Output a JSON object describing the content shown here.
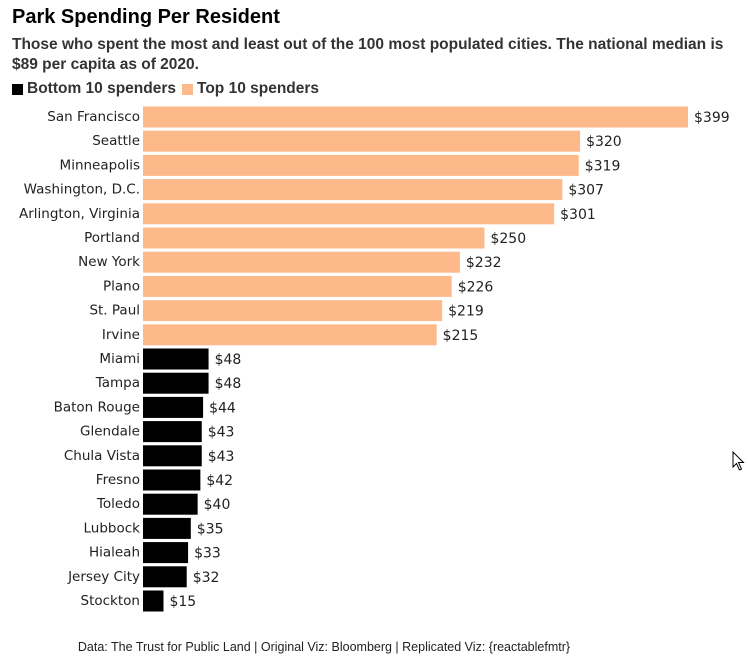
{
  "colors": {
    "top_spenders": "#FDB98A",
    "bottom_spenders": "#000000",
    "text": "#222222"
  },
  "header": {
    "title": "Park Spending Per Resident",
    "subtitle": "Those who spent the most and least out of the 100 most populated cities. The national median is $89 per capita as of 2020."
  },
  "legend": {
    "bottom_label": "Bottom 10 spenders",
    "top_label": "Top 10 spenders"
  },
  "footer": {
    "caption": "Data: The Trust for Public Land | Original Viz: Bloomberg | Replicated Viz: {reactablefmtr}"
  },
  "chart_data": {
    "type": "bar",
    "orientation": "horizontal",
    "title": "Park Spending Per Resident",
    "categories": [
      "San Francisco",
      "Seattle",
      "Minneapolis",
      "Washington, D.C.",
      "Arlington, Virginia",
      "Portland",
      "New York",
      "Plano",
      "St. Paul",
      "Irvine",
      "Miami",
      "Tampa",
      "Baton Rouge",
      "Glendale",
      "Chula Vista",
      "Fresno",
      "Toledo",
      "Lubbock",
      "Hialeah",
      "Jersey City",
      "Stockton"
    ],
    "values": [
      399,
      320,
      319,
      307,
      301,
      250,
      232,
      226,
      219,
      215,
      48,
      48,
      44,
      43,
      43,
      42,
      40,
      35,
      33,
      32,
      15
    ],
    "value_labels": [
      "$399",
      "$320",
      "$319",
      "$307",
      "$301",
      "$250",
      "$232",
      "$226",
      "$219",
      "$215",
      "$48",
      "$48",
      "$44",
      "$43",
      "$43",
      "$42",
      "$40",
      "$35",
      "$33",
      "$32",
      "$15"
    ],
    "groups": [
      "top",
      "top",
      "top",
      "top",
      "top",
      "top",
      "top",
      "top",
      "top",
      "top",
      "bottom",
      "bottom",
      "bottom",
      "bottom",
      "bottom",
      "bottom",
      "bottom",
      "bottom",
      "bottom",
      "bottom",
      "bottom"
    ],
    "series": [
      {
        "name": "Top 10 spenders",
        "group": "top"
      },
      {
        "name": "Bottom 10 spenders",
        "group": "bottom"
      }
    ],
    "xlim": [
      0,
      399
    ],
    "grid": false,
    "legend_position": "top-left"
  }
}
